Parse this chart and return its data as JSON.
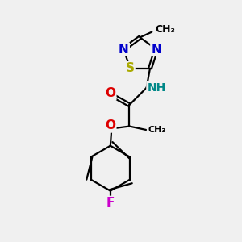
{
  "bg_color": "#f0f0f0",
  "bond_color": "#000000",
  "bond_width": 1.6,
  "atom_colors": {
    "N": "#0000cc",
    "S": "#aaaa00",
    "O": "#dd0000",
    "F": "#cc00cc",
    "NH": "#008888",
    "C": "#000000"
  },
  "font_size_atom": 11,
  "font_size_small": 9,
  "xlim": [
    0,
    10
  ],
  "ylim": [
    0,
    10
  ]
}
